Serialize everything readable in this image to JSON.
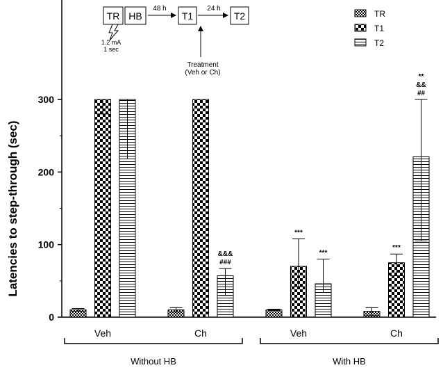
{
  "chart_data": {
    "type": "bar",
    "ylabel": "Latencies to step-through (sec)",
    "xlabel": "",
    "ylim": [
      0,
      300
    ],
    "yticks": [
      0,
      100,
      200,
      300
    ],
    "grid": false,
    "legend_position": "top-right",
    "groups": [
      {
        "label": "Without HB",
        "categories": [
          {
            "label": "Veh",
            "bars": [
              {
                "series": "TR",
                "value": 10,
                "err_low": 2,
                "err_high": 2,
                "annotation": []
              },
              {
                "series": "T1",
                "value": 300,
                "err_low": 20,
                "err_high": 0,
                "annotation": []
              },
              {
                "series": "T2",
                "value": 300,
                "err_low": 82,
                "err_high": 0,
                "annotation": []
              }
            ]
          },
          {
            "label": "Ch",
            "bars": [
              {
                "series": "TR",
                "value": 10,
                "err_low": 3,
                "err_high": 3,
                "annotation": []
              },
              {
                "series": "T1",
                "value": 300,
                "err_low": 0,
                "err_high": 0,
                "annotation": []
              },
              {
                "series": "T2",
                "value": 57,
                "err_low": 27,
                "err_high": 10,
                "annotation": [
                  "&&&",
                  "###"
                ]
              }
            ]
          }
        ]
      },
      {
        "label": "With HB",
        "categories": [
          {
            "label": "Veh",
            "bars": [
              {
                "series": "TR",
                "value": 10,
                "err_low": 1,
                "err_high": 1,
                "annotation": []
              },
              {
                "series": "T1",
                "value": 70,
                "err_low": 28,
                "err_high": 38,
                "annotation": [
                  "***"
                ]
              },
              {
                "series": "T2",
                "value": 46,
                "err_low": 12,
                "err_high": 34,
                "annotation": [
                  "***"
                ]
              }
            ]
          },
          {
            "label": "Ch",
            "bars": [
              {
                "series": "TR",
                "value": 8,
                "err_low": 6,
                "err_high": 5,
                "annotation": []
              },
              {
                "series": "T1",
                "value": 75,
                "err_low": 18,
                "err_high": 12,
                "annotation": [
                  "***"
                ]
              },
              {
                "series": "T2",
                "value": 221,
                "err_low": 116,
                "err_high": 79,
                "annotation": [
                  "**",
                  "&&",
                  "##"
                ]
              }
            ]
          }
        ]
      }
    ],
    "series": [
      {
        "name": "TR",
        "pattern": "fine-checker"
      },
      {
        "name": "T1",
        "pattern": "large-checker"
      },
      {
        "name": "T2",
        "pattern": "horizontal-lines"
      }
    ]
  },
  "schema": {
    "box_tr": "TR",
    "box_hb": "HB",
    "box_t1": "T1",
    "box_t2": "T2",
    "arrow1_label": "48 h",
    "arrow2_label": "24 h",
    "shock_line1": "1.2 mA",
    "shock_line2": "1 sec",
    "treatment_line1": "Treatment",
    "treatment_line2": "(Veh or Ch)"
  },
  "colors": {
    "stroke": "#000000",
    "background": "#ffffff"
  }
}
